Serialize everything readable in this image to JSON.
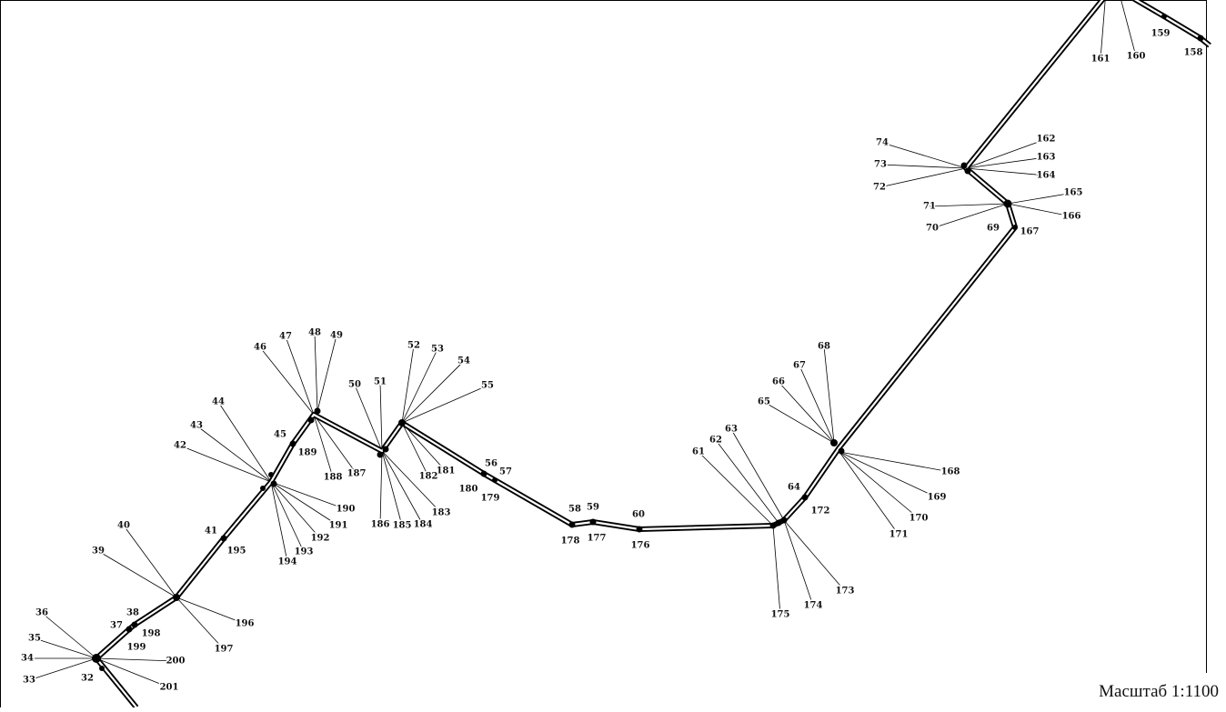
{
  "scale_label": "Масштаб 1:1100",
  "points": [
    {
      "id": "32"
    },
    {
      "id": "33"
    },
    {
      "id": "34"
    },
    {
      "id": "35"
    },
    {
      "id": "36"
    },
    {
      "id": "37"
    },
    {
      "id": "38"
    },
    {
      "id": "39"
    },
    {
      "id": "40"
    },
    {
      "id": "41"
    },
    {
      "id": "42"
    },
    {
      "id": "43"
    },
    {
      "id": "44"
    },
    {
      "id": "45"
    },
    {
      "id": "46"
    },
    {
      "id": "47"
    },
    {
      "id": "48"
    },
    {
      "id": "49"
    },
    {
      "id": "50"
    },
    {
      "id": "51"
    },
    {
      "id": "52"
    },
    {
      "id": "53"
    },
    {
      "id": "54"
    },
    {
      "id": "55"
    },
    {
      "id": "56"
    },
    {
      "id": "57"
    },
    {
      "id": "58"
    },
    {
      "id": "59"
    },
    {
      "id": "60"
    },
    {
      "id": "61"
    },
    {
      "id": "62"
    },
    {
      "id": "63"
    },
    {
      "id": "64"
    },
    {
      "id": "65"
    },
    {
      "id": "66"
    },
    {
      "id": "67"
    },
    {
      "id": "68"
    },
    {
      "id": "69"
    },
    {
      "id": "70"
    },
    {
      "id": "71"
    },
    {
      "id": "72"
    },
    {
      "id": "73"
    },
    {
      "id": "74"
    },
    {
      "id": "158"
    },
    {
      "id": "159"
    },
    {
      "id": "160"
    },
    {
      "id": "161"
    },
    {
      "id": "162"
    },
    {
      "id": "163"
    },
    {
      "id": "164"
    },
    {
      "id": "165"
    },
    {
      "id": "166"
    },
    {
      "id": "167"
    },
    {
      "id": "168"
    },
    {
      "id": "169"
    },
    {
      "id": "170"
    },
    {
      "id": "171"
    },
    {
      "id": "172"
    },
    {
      "id": "173"
    },
    {
      "id": "174"
    },
    {
      "id": "175"
    },
    {
      "id": "176"
    },
    {
      "id": "177"
    },
    {
      "id": "178"
    },
    {
      "id": "179"
    },
    {
      "id": "180"
    },
    {
      "id": "181"
    },
    {
      "id": "182"
    },
    {
      "id": "183"
    },
    {
      "id": "184"
    },
    {
      "id": "185"
    },
    {
      "id": "186"
    },
    {
      "id": "187"
    },
    {
      "id": "188"
    },
    {
      "id": "189"
    },
    {
      "id": "190"
    },
    {
      "id": "191"
    },
    {
      "id": "192"
    },
    {
      "id": "193"
    },
    {
      "id": "194"
    },
    {
      "id": "195"
    },
    {
      "id": "196"
    },
    {
      "id": "197"
    },
    {
      "id": "198"
    },
    {
      "id": "199"
    },
    {
      "id": "200"
    },
    {
      "id": "201"
    }
  ]
}
